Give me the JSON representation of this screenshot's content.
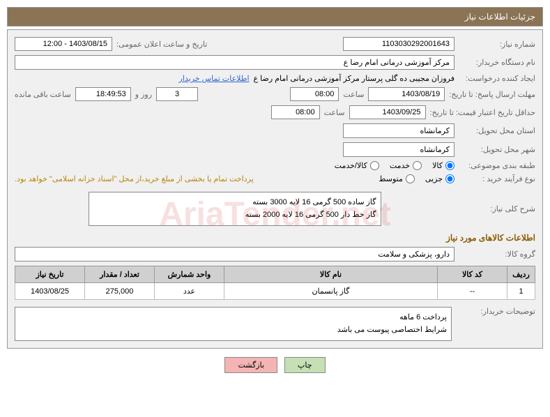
{
  "header": {
    "title": "جزئیات اطلاعات نیاز"
  },
  "fields": {
    "need_number_label": "شماره نیاز:",
    "need_number": "1103030292001643",
    "announce_label": "تاریخ و ساعت اعلان عمومی:",
    "announce_value": "1403/08/15 - 12:00",
    "buyer_org_label": "نام دستگاه خریدار:",
    "buyer_org": "مرکز آموزشی  درمانی امام رضا  ع",
    "requester_label": "ایجاد کننده درخواست:",
    "requester": "فروزان مجیبی ده گلی پرستار مرکز آموزشی  درمانی امام رضا  ع",
    "contact_link": "اطلاعات تماس خریدار",
    "deadline_label": "مهلت ارسال پاسخ: تا تاریخ:",
    "deadline_date": "1403/08/19",
    "time_label": "ساعت",
    "deadline_time": "08:00",
    "days_value": "3",
    "days_label": "روز و",
    "countdown": "18:49:53",
    "remaining_label": "ساعت باقی مانده",
    "validity_label": "حداقل تاریخ اعتبار قیمت: تا تاریخ:",
    "validity_date": "1403/09/25",
    "validity_time": "08:00",
    "province_label": "استان محل تحویل:",
    "province": "کرمانشاه",
    "city_label": "شهر محل تحویل:",
    "city": "کرمانشاه",
    "category_label": "طبقه بندی موضوعی:",
    "cat_goods": "کالا",
    "cat_service": "خدمت",
    "cat_both": "کالا/خدمت",
    "process_label": "نوع فرآیند خرید :",
    "proc_partial": "جزیی",
    "proc_medium": "متوسط",
    "payment_note": "پرداخت تمام یا بخشی از مبلغ خرید،از محل \"اسناد خزانه اسلامی\" خواهد بود.",
    "summary_label": "شرح کلی نیاز:",
    "summary_line1": "گاز ساده 500 گرمی   16 لایه   3000 بسته",
    "summary_line2": "گاز خط دار 500 گرمی   16 لایه   2000 بسته",
    "items_title": "اطلاعات کالاهای مورد نیاز",
    "group_label": "گروه کالا:",
    "group_value": "دارو، پزشکی و سلامت",
    "buyer_notes_label": "توضیحات خریدار:",
    "notes_line1": "پرداخت 6 ماهه",
    "notes_line2": "شرایط اختصاصی پیوست می باشد"
  },
  "table": {
    "headers": {
      "row": "ردیف",
      "code": "کد کالا",
      "name": "نام کالا",
      "unit": "واحد شمارش",
      "qty": "تعداد / مقدار",
      "date": "تاریخ نیاز"
    },
    "rows": [
      {
        "row": "1",
        "code": "--",
        "name": "گاز پانسمان",
        "unit": "عدد",
        "qty": "275,000",
        "date": "1403/08/25"
      }
    ]
  },
  "buttons": {
    "print": "چاپ",
    "back": "بازگشت"
  },
  "watermark": "AriaTender.net"
}
